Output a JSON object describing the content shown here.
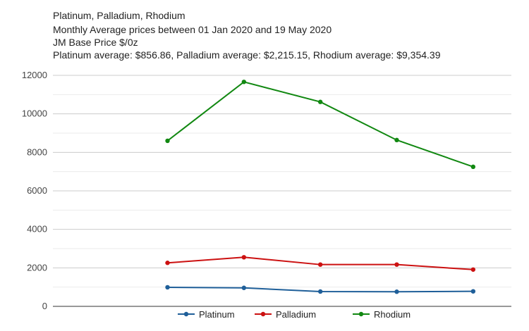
{
  "chart_data": {
    "type": "line",
    "title_lines": [
      "Platinum, Palladium, Rhodium",
      "Monthly Average prices between 01 Jan 2020 and 19 May 2020",
      "JM Base Price $/0z",
      "Platinum average: $856.86, Palladium average: $2,215.15, Rhodium average: $9,354.39"
    ],
    "xlabel": "",
    "ylabel": "",
    "categories": [
      "",
      "",
      "",
      "",
      ""
    ],
    "ylim": [
      0,
      12000
    ],
    "yticks": [
      0,
      2000,
      4000,
      6000,
      8000,
      10000,
      12000
    ],
    "grid": true,
    "legend_position": "bottom",
    "series": [
      {
        "name": "Platinum",
        "color": "#1f5f99",
        "values": [
          990,
          960,
          770,
          760,
          780
        ]
      },
      {
        "name": "Palladium",
        "color": "#cc1111",
        "values": [
          2260,
          2550,
          2170,
          2170,
          1910
        ]
      },
      {
        "name": "Rhodium",
        "color": "#118811",
        "values": [
          8600,
          11660,
          10620,
          8640,
          7250
        ]
      }
    ]
  }
}
